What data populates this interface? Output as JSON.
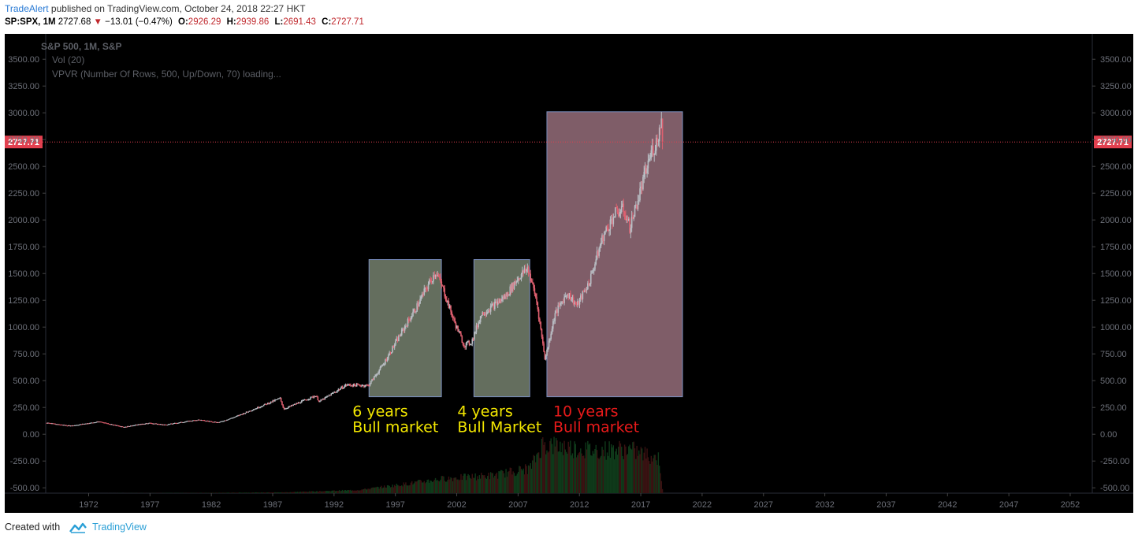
{
  "header": {
    "publisher": "TradeAlert",
    "published_text": "published on TradingView.com, October 24, 2018 22:27 HKT",
    "symbol": "SP:SPX, 1M",
    "last": "2727.68",
    "change": "−13.01 (−0.47%)",
    "o_label": "O:",
    "o_value": "2926.29",
    "h_label": "H:",
    "h_value": "2939.86",
    "l_label": "L:",
    "l_value": "2691.43",
    "c_label": "C:",
    "c_value": "2727.71"
  },
  "legend": {
    "line1": "S&P 500, 1M, S&P",
    "line2": "Vol (20)",
    "line3": "VPVR (Number Of Rows, 500, Up/Down, 70) loading..."
  },
  "footer": {
    "created_with": "Created with",
    "brand": "TradingView"
  },
  "colors": {
    "up": "#b9bec4",
    "down": "#e06070",
    "background": "#000000",
    "box_green": "#b6c8ab",
    "box_pink": "#e8a9be",
    "price_line": "#e2404f",
    "annotation_yellow": "#f2e600",
    "annotation_red": "#e61a1a"
  },
  "chart_data": {
    "type": "candlestick",
    "title": "S&P 500, 1M, S&P",
    "y_ticks": [
      "3500.00",
      "3250.00",
      "3000.00",
      "2750.00",
      "2500.00",
      "2250.00",
      "2000.00",
      "1750.00",
      "1500.00",
      "1250.00",
      "1000.00",
      "750.00",
      "500.00",
      "250.00",
      "0.00",
      "-250.00",
      "-500.00"
    ],
    "x_ticks": [
      "1972",
      "1977",
      "1982",
      "1987",
      "1992",
      "1997",
      "2002",
      "2007",
      "2012",
      "2017",
      "2022",
      "2027",
      "2032",
      "2037",
      "2042",
      "2047",
      "2052"
    ],
    "ylim": [
      -550,
      3700
    ],
    "xlim": [
      1968.5,
      2053.8
    ],
    "last_price": 2727.71,
    "last_price_label": "2727.71",
    "price_keypoints": [
      [
        1968.6,
        105
      ],
      [
        1970.5,
        78
      ],
      [
        1972.9,
        118
      ],
      [
        1974.8,
        67
      ],
      [
        1976.9,
        105
      ],
      [
        1978.2,
        88
      ],
      [
        1980.9,
        135
      ],
      [
        1982.6,
        110
      ],
      [
        1984.0,
        165
      ],
      [
        1987.6,
        335
      ],
      [
        1987.9,
        235
      ],
      [
        1990.5,
        360
      ],
      [
        1990.8,
        305
      ],
      [
        1993.0,
        460
      ],
      [
        1994.8,
        455
      ],
      [
        1996.0,
        650
      ],
      [
        1997.5,
        950
      ],
      [
        1998.7,
        1180
      ],
      [
        1999.5,
        1360
      ],
      [
        2000.3,
        1520
      ],
      [
        2001.0,
        1320
      ],
      [
        2001.7,
        1080
      ],
      [
        2002.6,
        830
      ],
      [
        2003.2,
        860
      ],
      [
        2004.0,
        1120
      ],
      [
        2005.0,
        1200
      ],
      [
        2006.0,
        1290
      ],
      [
        2007.0,
        1460
      ],
      [
        2007.8,
        1550
      ],
      [
        2008.5,
        1250
      ],
      [
        2009.2,
        700
      ],
      [
        2010.0,
        1120
      ],
      [
        2011.0,
        1320
      ],
      [
        2011.8,
        1200
      ],
      [
        2012.8,
        1420
      ],
      [
        2013.9,
        1840
      ],
      [
        2014.9,
        2060
      ],
      [
        2015.6,
        2100
      ],
      [
        2016.1,
        1930
      ],
      [
        2016.9,
        2240
      ],
      [
        2017.9,
        2650
      ],
      [
        2018.2,
        2700
      ],
      [
        2018.7,
        2920
      ],
      [
        2018.81,
        2728
      ]
    ],
    "volume_keypoints": [
      [
        1968.6,
        0
      ],
      [
        1980,
        2
      ],
      [
        1988,
        8
      ],
      [
        1994,
        30
      ],
      [
        1998,
        90
      ],
      [
        2001,
        140
      ],
      [
        2005,
        170
      ],
      [
        2008,
        240
      ],
      [
        2009,
        470
      ],
      [
        2013,
        410
      ],
      [
        2016,
        420
      ],
      [
        2018.5,
        330
      ],
      [
        2018.81,
        0
      ]
    ],
    "highlight_boxes": [
      {
        "x0": 1994.85,
        "x1": 2000.75,
        "y0": 350,
        "y1": 1630,
        "label_line1": "6 years",
        "label_line2": "Bull market",
        "label_color": "annotation_yellow",
        "fill": "box_green"
      },
      {
        "x0": 2003.4,
        "x1": 2007.95,
        "y0": 350,
        "y1": 1630,
        "label_line1": "4 years",
        "label_line2": "Bull Market",
        "label_color": "annotation_yellow",
        "fill": "box_green"
      },
      {
        "x0": 2009.35,
        "x1": 2020.4,
        "y0": 350,
        "y1": 3010,
        "label_line1": "10 years",
        "label_line2": "Bull market",
        "label_color": "annotation_red",
        "fill": "box_pink"
      }
    ]
  }
}
